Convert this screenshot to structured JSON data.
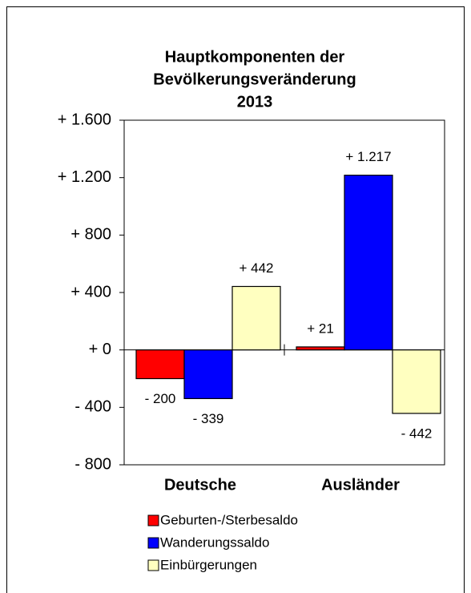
{
  "chart_data": {
    "type": "bar",
    "title": [
      "Hauptkomponenten der",
      "Bevölkerungsveränderung",
      "2013"
    ],
    "categories": [
      "Deutsche",
      "Ausländer"
    ],
    "series": [
      {
        "name": "Geburten-/Sterbesaldo",
        "color": "#ff0000",
        "values": [
          -200,
          21
        ],
        "value_labels": [
          "- 200",
          "+ 21"
        ]
      },
      {
        "name": "Wanderungssaldo",
        "color": "#0000ff",
        "values": [
          -339,
          1217
        ],
        "value_labels": [
          "- 339",
          "+ 1.217"
        ]
      },
      {
        "name": "Einbürgerungen",
        "color": "#ffffc0",
        "values": [
          442,
          -442
        ],
        "value_labels": [
          "+ 442",
          "- 442"
        ]
      }
    ],
    "ylim": [
      -800,
      1600
    ],
    "yticks": [
      {
        "value": -800,
        "label": "- 800"
      },
      {
        "value": -400,
        "label": "- 400"
      },
      {
        "value": 0,
        "label": "+ 0"
      },
      {
        "value": 400,
        "label": "+ 400"
      },
      {
        "value": 800,
        "label": "+ 800"
      },
      {
        "value": 1200,
        "label": "+ 1.200"
      },
      {
        "value": 1600,
        "label": "+ 1.600"
      }
    ],
    "legend": "bottom"
  }
}
